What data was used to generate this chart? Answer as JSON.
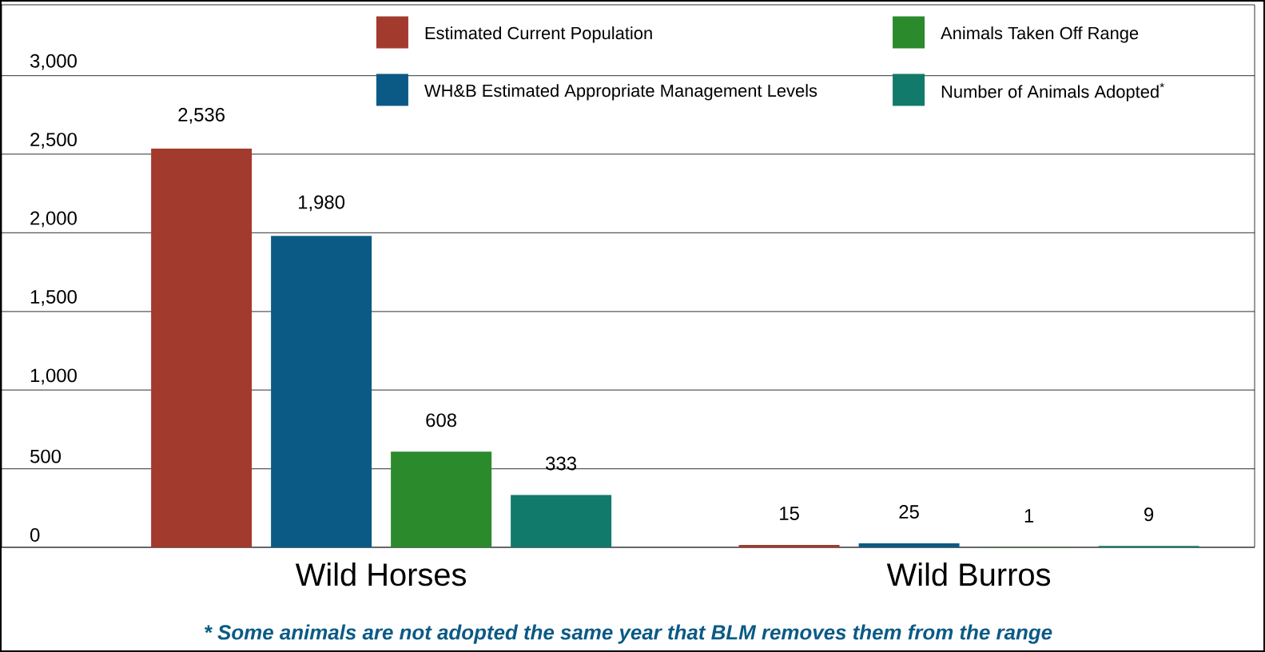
{
  "chart_data": {
    "type": "bar",
    "categories": [
      "Wild Horses",
      "Wild Burros"
    ],
    "series": [
      {
        "name": "Estimated Current Population",
        "color": "#a33a2e",
        "values": [
          2536,
          15
        ],
        "value_labels": [
          "2,536",
          "15"
        ]
      },
      {
        "name": "WH&B Estimated Appropriate Management Levels",
        "color": "#0b5a85",
        "values": [
          1980,
          25
        ],
        "value_labels": [
          "1,980",
          "25"
        ]
      },
      {
        "name": "Animals Taken Off Range",
        "color": "#2a8a2c",
        "values": [
          608,
          1
        ],
        "value_labels": [
          "608",
          "1"
        ]
      },
      {
        "name": "Number of Animals Adopted$^{*}$",
        "color": "#117a6a",
        "values": [
          333,
          9
        ],
        "value_labels": [
          "333",
          "9"
        ]
      }
    ],
    "ylim": [
      0,
      3450
    ],
    "yticks": [
      0,
      500,
      {
        "value": 1000,
        "label": "1,000"
      },
      {
        "value": 1500,
        "label": "1,500"
      },
      {
        "value": 2000,
        "label": "2,000"
      },
      {
        "value": 2500,
        "label": "2,500"
      },
      {
        "value": 3000,
        "label": "3,000"
      }
    ],
    "grid": "y",
    "legend": "top",
    "annotations": [
      "* Some animals are not adopted the same year that BLM removes them from the range"
    ]
  }
}
